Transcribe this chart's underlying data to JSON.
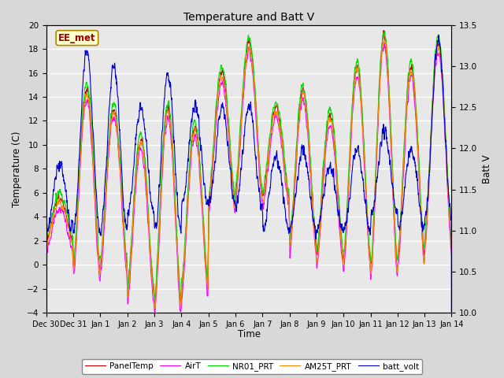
{
  "title": "Temperature and Batt V",
  "xlabel": "Time",
  "ylabel_left": "Temperature (C)",
  "ylabel_right": "Batt V",
  "ylim_left": [
    -4,
    20
  ],
  "ylim_right": [
    10.0,
    13.5
  ],
  "annotation_text": "EE_met",
  "bg_color": "#d8d8d8",
  "plot_bg_color": "#e8e8e8",
  "series": {
    "PanelTemp": {
      "color": "#cc0000",
      "lw": 0.8
    },
    "AirT": {
      "color": "#ff00ff",
      "lw": 0.8
    },
    "NR01_PRT": {
      "color": "#00dd00",
      "lw": 0.8
    },
    "AM25T_PRT": {
      "color": "#ff8800",
      "lw": 0.8
    },
    "batt_volt": {
      "color": "#0000cc",
      "lw": 0.8
    }
  },
  "xtick_labels": [
    "Dec 30",
    "Dec 31",
    "Jan 1",
    "Jan 2",
    "Jan 3",
    "Jan 4",
    "Jan 5",
    "Jan 6",
    "Jan 7",
    "Jan 8",
    "Jan 9",
    "Jan 10",
    "Jan 11",
    "Jan 12",
    "Jan 13",
    "Jan 14"
  ],
  "yticks_left": [
    -4,
    -2,
    0,
    2,
    4,
    6,
    8,
    10,
    12,
    14,
    16,
    18,
    20
  ],
  "yticks_right": [
    10.0,
    10.5,
    11.0,
    11.5,
    12.0,
    12.5,
    13.0,
    13.5
  ]
}
